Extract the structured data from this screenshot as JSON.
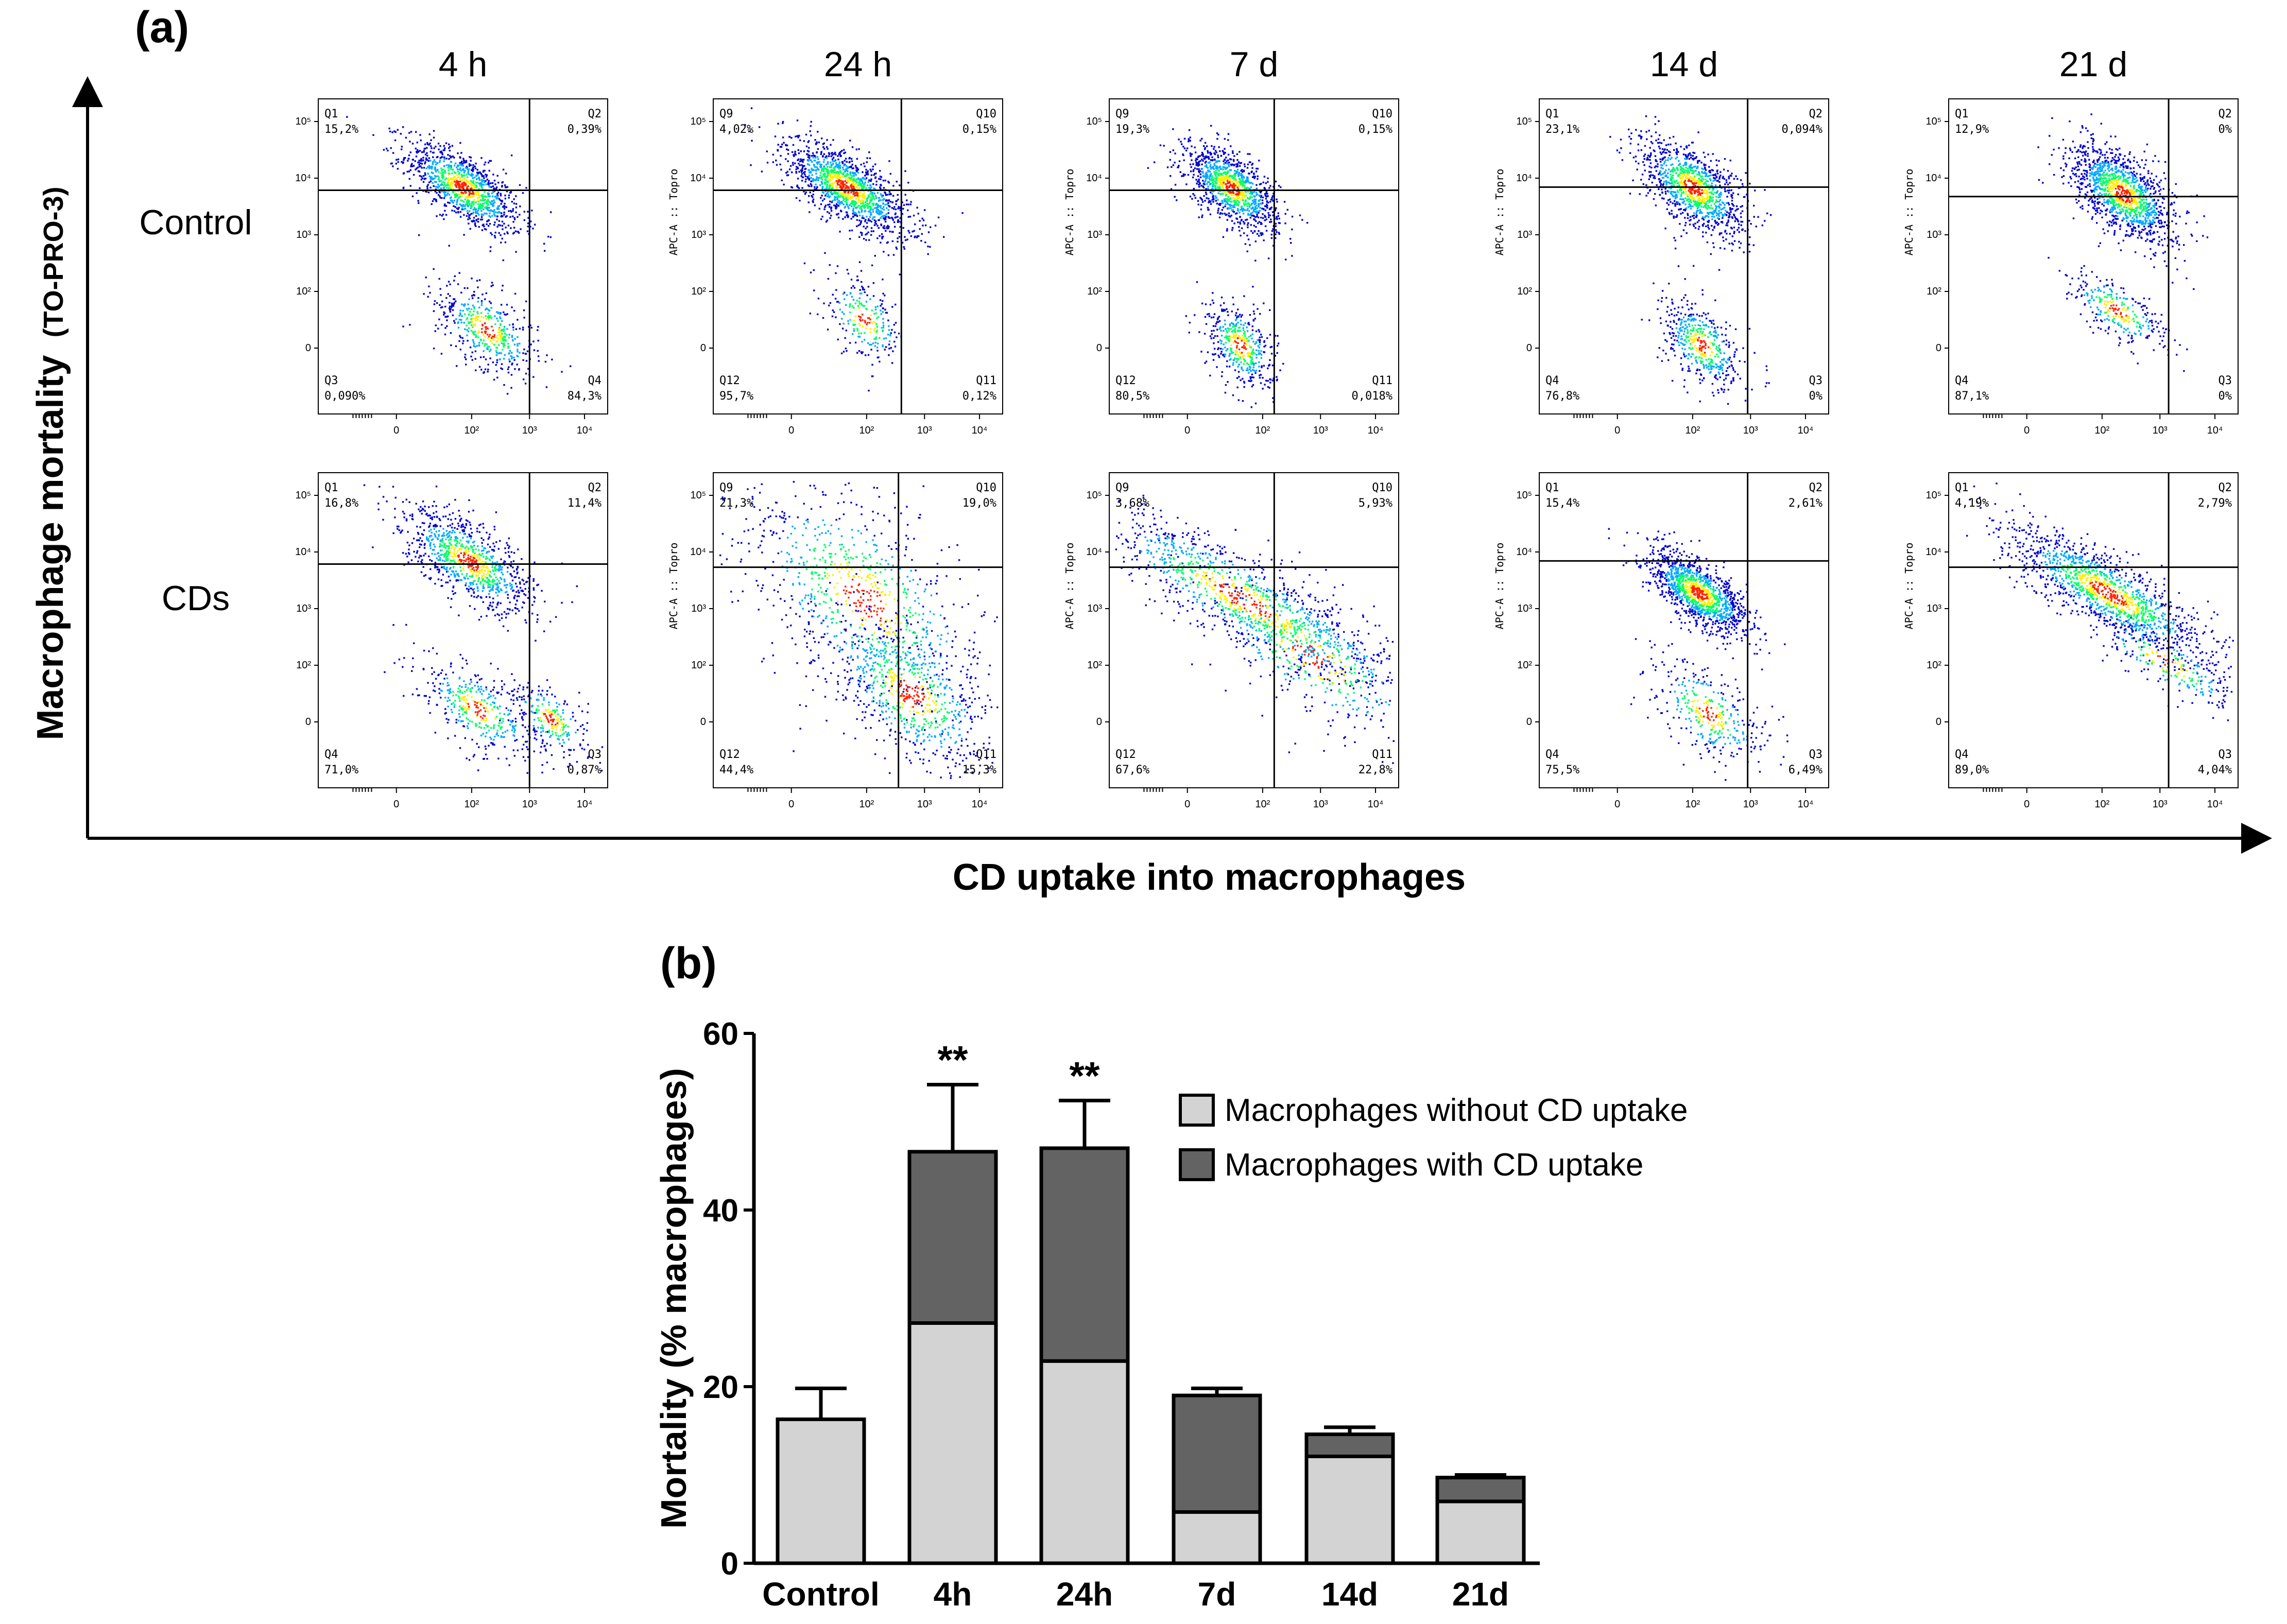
{
  "figure": {
    "panel_a_label": "(a)",
    "panel_b_label": "(b)",
    "y_axis_title_main": "Macrophage mortality",
    "y_axis_title_sub": "(TO-PRO-3)",
    "x_axis_title": "CD uptake into macrophages"
  },
  "chart_data": [
    {
      "type": "scatter",
      "title": "",
      "columns": [
        "4 h",
        "24 h",
        "7 d",
        "14 d",
        "21 d"
      ],
      "rows": [
        "Control",
        "CDs"
      ],
      "panel_ylabel": "APC-A :: Topro",
      "x_ticks": [
        "0",
        "10²",
        "10³",
        "10⁴"
      ],
      "y_ticks": [
        "10⁵",
        "10⁴",
        "10³",
        "10²",
        "0"
      ],
      "density_colors": [
        "#0000cc",
        "#00aaff",
        "#00ff66",
        "#ffee00",
        "#ff2200"
      ],
      "panels": [
        {
          "row": "Control",
          "column": "4 h",
          "show_ylabel": false,
          "gate_x": 0.73,
          "gate_y": 0.29,
          "center": [
            0.52,
            0.39
          ],
          "spread": 1.0,
          "populations": [
            [
              0.5,
              0.72,
              0.1,
              0.06,
              0.7
            ],
            [
              0.58,
              0.27,
              0.09,
              0.07,
              0.3
            ]
          ],
          "quadrants": [
            {
              "name": "Q1",
              "value": "15,2%"
            },
            {
              "name": "Q2",
              "value": "0,39%"
            },
            {
              "name": "Q3",
              "value": "0,090%"
            },
            {
              "name": "Q4",
              "value": "84,3%"
            }
          ]
        },
        {
          "row": "Control",
          "column": "24 h",
          "show_ylabel": true,
          "gate_x": 0.65,
          "gate_y": 0.29,
          "center": [
            0.46,
            0.37
          ],
          "spread": 1.0,
          "populations": [
            [
              0.46,
              0.72,
              0.11,
              0.06,
              0.85
            ],
            [
              0.52,
              0.3,
              0.07,
              0.07,
              0.15
            ]
          ],
          "quadrants": [
            {
              "name": "Q9",
              "value": "4,02%"
            },
            {
              "name": "Q10",
              "value": "0,15%"
            },
            {
              "name": "Q12",
              "value": "95,7%"
            },
            {
              "name": "Q11",
              "value": "0,12%"
            }
          ]
        },
        {
          "row": "Control",
          "column": "7 d",
          "show_ylabel": true,
          "gate_x": 0.57,
          "gate_y": 0.29,
          "center": [
            0.4,
            0.36
          ],
          "spread": 1.0,
          "populations": [
            [
              0.42,
              0.72,
              0.08,
              0.06,
              0.72
            ],
            [
              0.45,
              0.22,
              0.06,
              0.07,
              0.28
            ]
          ],
          "quadrants": [
            {
              "name": "Q9",
              "value": "19,3%"
            },
            {
              "name": "Q10",
              "value": "0,15%"
            },
            {
              "name": "Q12",
              "value": "80,5%"
            },
            {
              "name": "Q11",
              "value": "0,018%"
            }
          ]
        },
        {
          "row": "Control",
          "column": "14 d",
          "show_ylabel": true,
          "gate_x": 0.72,
          "gate_y": 0.28,
          "center": [
            0.55,
            0.38
          ],
          "spread": 1.0,
          "populations": [
            [
              0.53,
              0.72,
              0.09,
              0.07,
              0.7
            ],
            [
              0.56,
              0.22,
              0.07,
              0.07,
              0.3
            ]
          ],
          "quadrants": [
            {
              "name": "Q1",
              "value": "23,1%"
            },
            {
              "name": "Q2",
              "value": "0,094%"
            },
            {
              "name": "Q4",
              "value": "76,8%"
            },
            {
              "name": "Q3",
              "value": "0%"
            }
          ]
        },
        {
          "row": "Control",
          "column": "21 d",
          "show_ylabel": true,
          "gate_x": 0.76,
          "gate_y": 0.31,
          "center": [
            0.58,
            0.36
          ],
          "spread": 1.0,
          "populations": [
            [
              0.6,
              0.7,
              0.09,
              0.07,
              0.82
            ],
            [
              0.58,
              0.33,
              0.09,
              0.05,
              0.18
            ]
          ],
          "quadrants": [
            {
              "name": "Q1",
              "value": "12,9%"
            },
            {
              "name": "Q2",
              "value": "0%"
            },
            {
              "name": "Q4",
              "value": "87,1%"
            },
            {
              "name": "Q3",
              "value": "0%"
            }
          ]
        },
        {
          "row": "CDs",
          "column": "4 h",
          "show_ylabel": false,
          "gate_x": 0.73,
          "gate_y": 0.29,
          "center": [
            0.52,
            0.36
          ],
          "spread": 1.15,
          "populations": [
            [
              0.52,
              0.72,
              0.1,
              0.06,
              0.6
            ],
            [
              0.55,
              0.25,
              0.09,
              0.06,
              0.25
            ],
            [
              0.8,
              0.22,
              0.06,
              0.05,
              0.15
            ]
          ],
          "quadrants": [
            {
              "name": "Q1",
              "value": "16,8%"
            },
            {
              "name": "Q2",
              "value": "11,4%"
            },
            {
              "name": "Q4",
              "value": "71,0%"
            },
            {
              "name": "Q3",
              "value": "0,87%"
            }
          ]
        },
        {
          "row": "CDs",
          "column": "24 h",
          "show_ylabel": true,
          "gate_x": 0.64,
          "gate_y": 0.3,
          "center": [
            0.6,
            0.3
          ],
          "spread": 1.5,
          "populations": [
            [
              0.52,
              0.6,
              0.15,
              0.12,
              0.55
            ],
            [
              0.68,
              0.3,
              0.1,
              0.08,
              0.45
            ]
          ],
          "quadrants": [
            {
              "name": "Q9",
              "value": "21,3%"
            },
            {
              "name": "Q10",
              "value": "19,0%"
            },
            {
              "name": "Q12",
              "value": "44,4%"
            },
            {
              "name": "Q11",
              "value": "15,3%"
            }
          ]
        },
        {
          "row": "CDs",
          "column": "7 d",
          "show_ylabel": true,
          "gate_x": 0.57,
          "gate_y": 0.3,
          "center": [
            0.5,
            0.4
          ],
          "spread": 1.4,
          "populations": [
            [
              0.46,
              0.6,
              0.2,
              0.06,
              0.7
            ],
            [
              0.7,
              0.42,
              0.15,
              0.08,
              0.3
            ]
          ],
          "quadrants": [
            {
              "name": "Q9",
              "value": "3,68%"
            },
            {
              "name": "Q10",
              "value": "5,93%"
            },
            {
              "name": "Q12",
              "value": "67,6%"
            },
            {
              "name": "Q11",
              "value": "22,8%"
            }
          ]
        },
        {
          "row": "CDs",
          "column": "14 d",
          "show_ylabel": true,
          "gate_x": 0.72,
          "gate_y": 0.28,
          "center": [
            0.57,
            0.36
          ],
          "spread": 1.1,
          "populations": [
            [
              0.55,
              0.62,
              0.08,
              0.05,
              0.78
            ],
            [
              0.58,
              0.24,
              0.09,
              0.07,
              0.22
            ]
          ],
          "quadrants": [
            {
              "name": "Q1",
              "value": "15,4%"
            },
            {
              "name": "Q2",
              "value": "2,61%"
            },
            {
              "name": "Q4",
              "value": "75,5%"
            },
            {
              "name": "Q3",
              "value": "6,49%"
            }
          ]
        },
        {
          "row": "CDs",
          "column": "21 d",
          "show_ylabel": true,
          "gate_x": 0.76,
          "gate_y": 0.3,
          "center": [
            0.6,
            0.4
          ],
          "spread": 1.3,
          "populations": [
            [
              0.55,
              0.62,
              0.14,
              0.05,
              0.85
            ],
            [
              0.75,
              0.4,
              0.1,
              0.04,
              0.15
            ]
          ],
          "quadrants": [
            {
              "name": "Q1",
              "value": "4,19%"
            },
            {
              "name": "Q2",
              "value": "2,79%"
            },
            {
              "name": "Q4",
              "value": "89,0%"
            },
            {
              "name": "Q3",
              "value": "4,04%"
            }
          ]
        }
      ]
    },
    {
      "type": "bar",
      "stacked": true,
      "title": "",
      "xlabel": "",
      "ylabel": "Mortality (% macrophages)",
      "ylim": [
        0,
        60
      ],
      "y_ticks": [
        0,
        20,
        40,
        60
      ],
      "categories": [
        "Control",
        "4h",
        "24h",
        "7d",
        "14d",
        "21d"
      ],
      "legend_position": "top-right",
      "series": [
        {
          "name": "Macrophages without CD uptake",
          "color": "#d3d3d3",
          "values": [
            16.3,
            27.2,
            22.9,
            5.8,
            12.1,
            7.0
          ]
        },
        {
          "name": "Macrophages with CD uptake",
          "color": "#636363",
          "values": [
            0,
            19.4,
            24.1,
            13.2,
            2.5,
            2.7
          ]
        }
      ],
      "error_bars": [
        3.5,
        7.6,
        5.4,
        0.8,
        0.8,
        0.3
      ],
      "annotations": [
        {
          "category": "4h",
          "text": "**"
        },
        {
          "category": "24h",
          "text": "**"
        }
      ]
    }
  ]
}
